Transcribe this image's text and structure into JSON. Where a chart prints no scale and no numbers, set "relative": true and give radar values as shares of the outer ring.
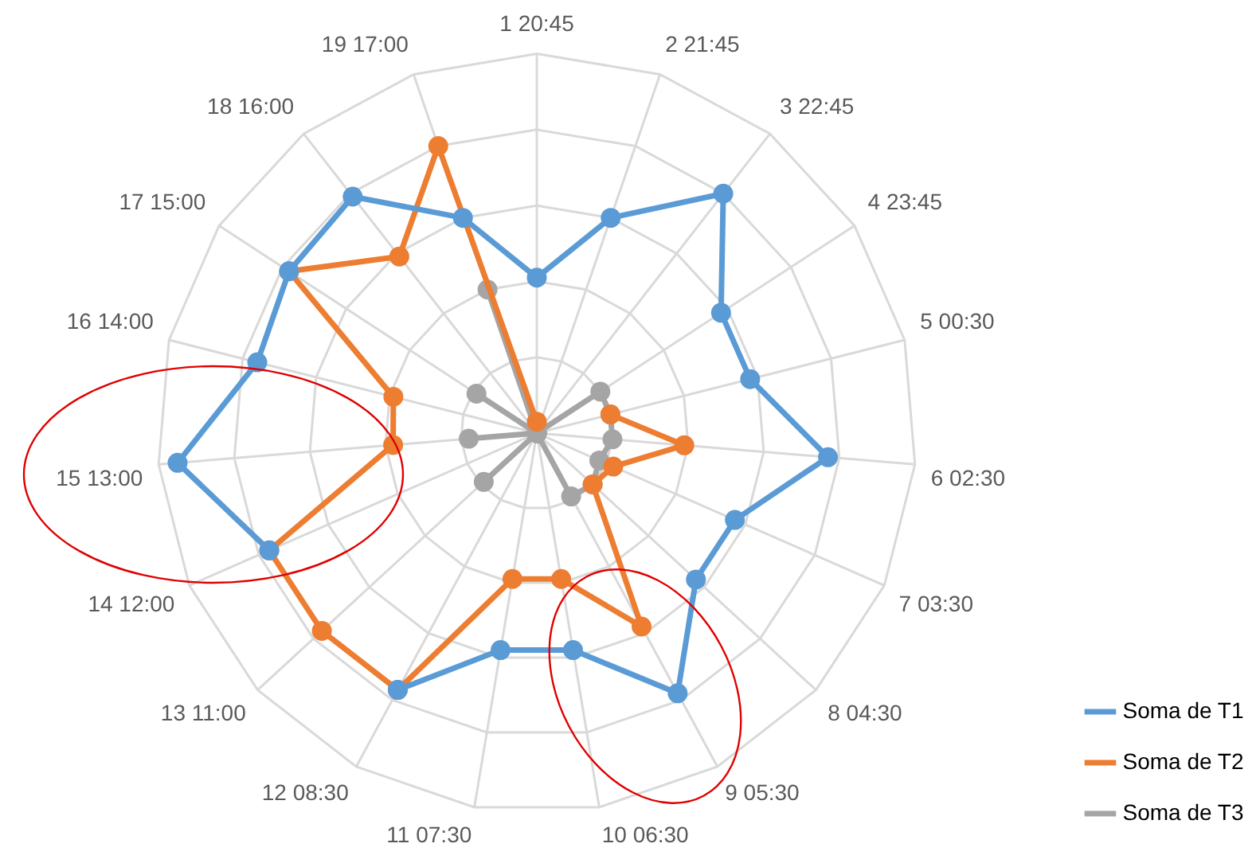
{
  "chart_data": {
    "type": "radar",
    "relative": true,
    "legend": "right",
    "marker": "circle",
    "line_style": "solid",
    "grid": true,
    "categories": [
      "1 20:45",
      "2 21:45",
      "3 22:45",
      "4 23:45",
      "5 00:30",
      "6 02:30",
      "7 03:30",
      "8 04:30",
      "9 05:30",
      "10 06:30",
      "11 07:30",
      "12 08:30",
      "13 11:00",
      "14 12:00",
      "15 13:00",
      "16 14:00",
      "17 15:00",
      "18 16:00",
      "19 17:00"
    ],
    "series": [
      {
        "name": "Soma de T1",
        "color": "#5b9bd5",
        "values": [
          0.41,
          0.6,
          0.8,
          0.58,
          0.58,
          0.77,
          0.57,
          0.57,
          0.78,
          0.58,
          0.58,
          0.77,
          null,
          0.77,
          0.95,
          0.76,
          0.78,
          0.79,
          0.6
        ]
      },
      {
        "name": "Soma de T2",
        "color": "#ed7d31",
        "values": [
          0.03,
          null,
          null,
          null,
          0.2,
          0.39,
          0.22,
          0.2,
          0.58,
          0.39,
          0.39,
          0.77,
          0.77,
          0.77,
          0.38,
          0.39,
          0.78,
          0.59,
          0.8
        ]
      },
      {
        "name": "Soma de T3",
        "color": "#a5a5a5",
        "values": [
          0,
          0,
          0,
          0.2,
          0.2,
          0.2,
          0.18,
          0.2,
          0.19,
          0,
          0,
          0,
          0.19,
          0,
          0.18,
          0,
          0.19,
          0,
          0.4
        ]
      }
    ]
  }
}
